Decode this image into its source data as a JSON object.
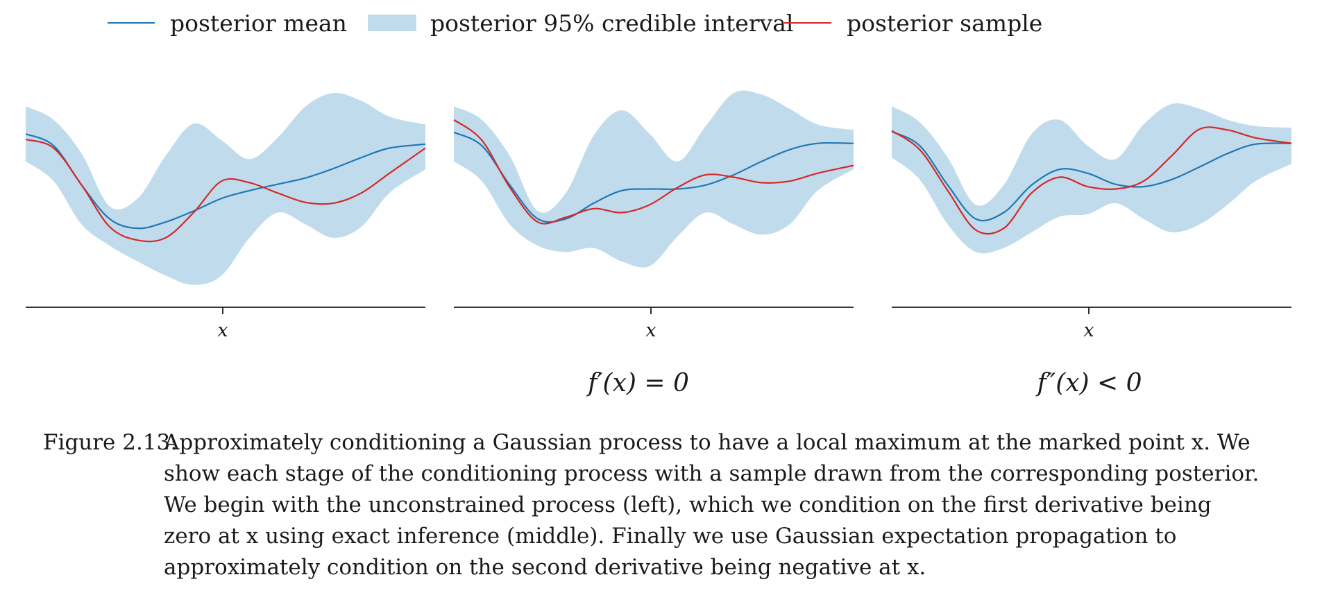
{
  "legend": {
    "mean_label": "posterior mean",
    "interval_label": "posterior 95% credible interval",
    "sample_label": "posterior sample"
  },
  "colors": {
    "mean": "#1f77b4",
    "interval": "#c0dcec",
    "sample": "#d62728",
    "axis": "#1a1a1a"
  },
  "conditions": [
    "",
    "f′(x) = 0",
    "f″(x) < 0"
  ],
  "caption": {
    "number": "Figure 2.13:",
    "text": "Approximately conditioning a Gaussian process to have a local maximum at the marked point x. We show each stage of the conditioning process with a sample drawn from the corresponding posterior. We begin with the unconstrained process (left), which we condition on the first derivative being zero at x using exact inference (middle). Finally we use Gaussian expectation propagation to approximately condition on the second derivative being negative at x."
  },
  "chart_data": [
    {
      "type": "line",
      "title": "",
      "xlabel": "x",
      "xticks": [
        "x"
      ],
      "xlim": [
        0,
        1
      ],
      "ylim": [
        -1.3,
        1.3
      ],
      "grid": false,
      "x": [
        0,
        0.07,
        0.14,
        0.21,
        0.28,
        0.35,
        0.42,
        0.49,
        0.56,
        0.63,
        0.7,
        0.77,
        0.84,
        0.91,
        1.0
      ],
      "series": [
        {
          "name": "posterior mean",
          "values": [
            0.7,
            0.55,
            0.05,
            -0.38,
            -0.5,
            -0.42,
            -0.28,
            -0.12,
            -0.02,
            0.06,
            0.14,
            0.26,
            0.4,
            0.52,
            0.57
          ]
        },
        {
          "name": "posterior 95% credible interval lower",
          "values": [
            0.35,
            0.1,
            -0.45,
            -0.72,
            -0.92,
            -1.1,
            -1.22,
            -1.1,
            -0.62,
            -0.3,
            -0.45,
            -0.62,
            -0.48,
            -0.05,
            0.25
          ]
        },
        {
          "name": "posterior 95% credible interval upper",
          "values": [
            1.05,
            0.88,
            0.45,
            -0.22,
            -0.12,
            0.42,
            0.83,
            0.62,
            0.38,
            0.65,
            1.05,
            1.22,
            1.12,
            0.92,
            0.82
          ]
        },
        {
          "name": "posterior sample",
          "values": [
            0.63,
            0.52,
            0.05,
            -0.48,
            -0.65,
            -0.62,
            -0.3,
            0.1,
            0.08,
            -0.05,
            -0.17,
            -0.18,
            -0.05,
            0.2,
            0.52
          ]
        }
      ]
    },
    {
      "type": "line",
      "title": "f′(x) = 0",
      "xlabel": "x",
      "xticks": [
        "x"
      ],
      "xlim": [
        0,
        1
      ],
      "ylim": [
        -1.3,
        1.3
      ],
      "grid": false,
      "x": [
        0,
        0.07,
        0.14,
        0.21,
        0.28,
        0.35,
        0.42,
        0.49,
        0.56,
        0.63,
        0.7,
        0.77,
        0.84,
        0.91,
        1.0
      ],
      "series": [
        {
          "name": "posterior mean",
          "values": [
            0.72,
            0.55,
            0.05,
            -0.38,
            -0.38,
            -0.18,
            -0.02,
            0.0,
            0.0,
            0.05,
            0.18,
            0.35,
            0.5,
            0.58,
            0.58
          ]
        },
        {
          "name": "posterior 95% credible interval lower",
          "values": [
            0.35,
            0.1,
            -0.45,
            -0.72,
            -0.8,
            -0.75,
            -0.92,
            -0.98,
            -0.6,
            -0.3,
            -0.45,
            -0.58,
            -0.45,
            -0.02,
            0.25
          ]
        },
        {
          "name": "posterior 95% credible interval upper",
          "values": [
            1.05,
            0.88,
            0.42,
            -0.28,
            -0.05,
            0.68,
            1.0,
            0.7,
            0.35,
            0.8,
            1.22,
            1.2,
            1.02,
            0.82,
            0.75
          ]
        },
        {
          "name": "posterior sample",
          "values": [
            0.88,
            0.62,
            0.02,
            -0.42,
            -0.36,
            -0.25,
            -0.3,
            -0.2,
            0.02,
            0.18,
            0.15,
            0.08,
            0.1,
            0.2,
            0.3
          ]
        }
      ]
    },
    {
      "type": "line",
      "title": "f″(x) < 0",
      "xlabel": "x",
      "xticks": [
        "x"
      ],
      "xlim": [
        0,
        1
      ],
      "ylim": [
        -1.3,
        1.3
      ],
      "grid": false,
      "x": [
        0,
        0.07,
        0.14,
        0.21,
        0.28,
        0.35,
        0.42,
        0.49,
        0.56,
        0.63,
        0.7,
        0.77,
        0.84,
        0.91,
        1.0
      ],
      "series": [
        {
          "name": "posterior mean",
          "values": [
            0.73,
            0.55,
            0.05,
            -0.38,
            -0.3,
            0.05,
            0.25,
            0.2,
            0.06,
            0.03,
            0.12,
            0.28,
            0.45,
            0.57,
            0.58
          ]
        },
        {
          "name": "posterior 95% credible interval lower",
          "values": [
            0.4,
            0.12,
            -0.45,
            -0.8,
            -0.75,
            -0.55,
            -0.35,
            -0.32,
            -0.18,
            -0.38,
            -0.55,
            -0.45,
            -0.2,
            0.1,
            0.32
          ]
        },
        {
          "name": "posterior 95% credible interval upper",
          "values": [
            1.05,
            0.85,
            0.4,
            -0.2,
            0.05,
            0.7,
            0.88,
            0.55,
            0.38,
            0.82,
            1.08,
            1.02,
            0.88,
            0.8,
            0.78
          ]
        },
        {
          "name": "posterior sample",
          "values": [
            0.74,
            0.5,
            -0.02,
            -0.52,
            -0.5,
            -0.05,
            0.15,
            0.03,
            0.0,
            0.1,
            0.42,
            0.76,
            0.75,
            0.65,
            0.58
          ]
        }
      ]
    }
  ]
}
